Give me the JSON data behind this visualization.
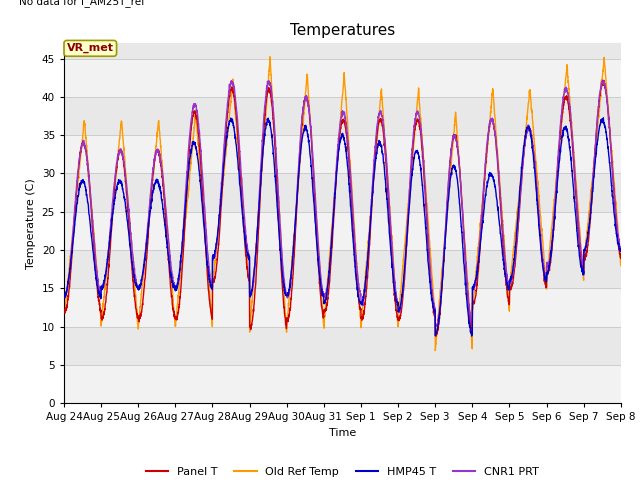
{
  "title": "Temperatures",
  "ylabel": "Temperature (C)",
  "xlabel": "Time",
  "top_left_text": "No data for f_AM25T_ref",
  "annotation_text": "VR_met",
  "ylim": [
    0,
    47
  ],
  "yticks": [
    0,
    5,
    10,
    15,
    20,
    25,
    30,
    35,
    40,
    45
  ],
  "x_labels": [
    "Aug 24",
    "Aug 25",
    "Aug 26",
    "Aug 27",
    "Aug 28",
    "Aug 29",
    "Aug 30",
    "Aug 31",
    "Sep 1",
    "Sep 2",
    "Sep 3",
    "Sep 4",
    "Sep 5",
    "Sep 6",
    "Sep 7",
    "Sep 8"
  ],
  "colors": {
    "panel_t": "#cc0000",
    "old_ref_temp": "#ff9900",
    "hmp45_t": "#0000cc",
    "cnr1_prt": "#9933cc"
  },
  "legend_labels": [
    "Panel T",
    "Old Ref Temp",
    "HMP45 T",
    "CNR1 PRT"
  ],
  "background_inner": "#e8e8e8",
  "title_fontsize": 11,
  "label_fontsize": 8,
  "tick_fontsize": 7.5,
  "legend_fontsize": 8,
  "annotation_fontsize": 8
}
